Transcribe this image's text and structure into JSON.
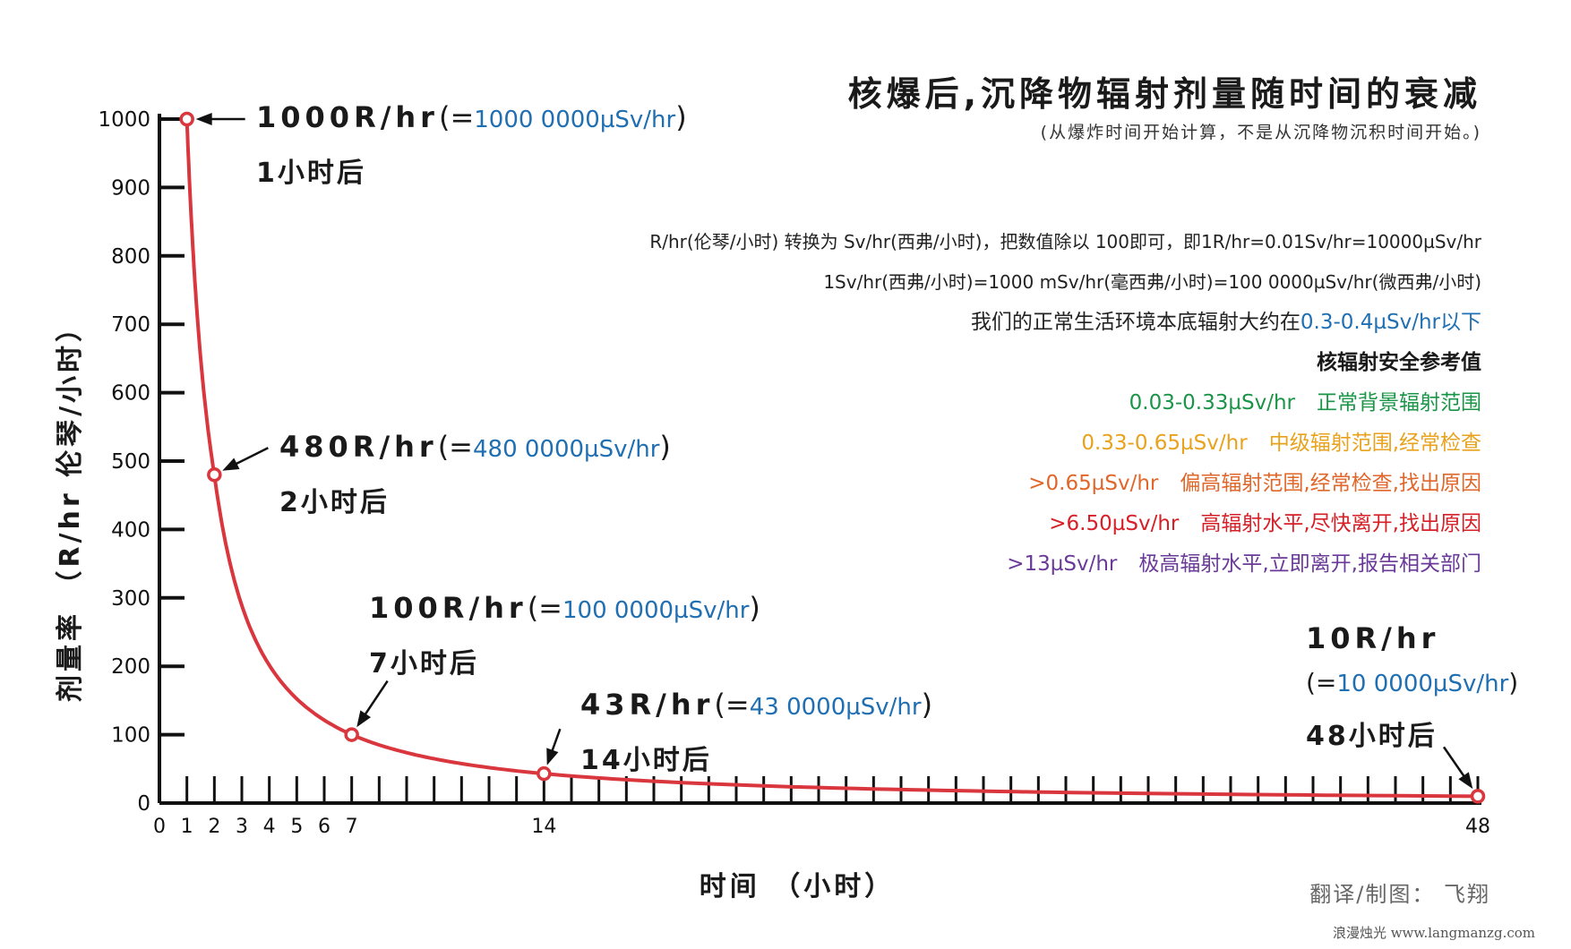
{
  "chart_data": {
    "type": "line",
    "title": "核爆后,沉降物辐射剂量随时间的衰减",
    "subtitle": "(从爆炸时间开始计算，不是从沉降物沉积时间开始。)",
    "xlabel": "时间 （小时）",
    "ylabel": "剂量率 （R/hr 伦琴/小时）",
    "xlim": [
      0,
      48
    ],
    "ylim": [
      0,
      1000
    ],
    "x_tick_labels": [
      "0",
      "1",
      "2",
      "3",
      "4",
      "5",
      "6",
      "7",
      "14",
      "48"
    ],
    "y_ticks": [
      "0",
      "100",
      "200",
      "300",
      "400",
      "500",
      "600",
      "700",
      "800",
      "900",
      "1000"
    ],
    "line_color": "#d9363e",
    "points": [
      {
        "x": 1,
        "y": 1000
      },
      {
        "x": 2,
        "y": 480
      },
      {
        "x": 7,
        "y": 100
      },
      {
        "x": 14,
        "y": 43
      },
      {
        "x": 48,
        "y": 10
      }
    ],
    "annotations": [
      {
        "rate": "1000R/hr",
        "open": "(=",
        "value": "1000 0000µSv/hr",
        "close": ")",
        "time": "1小时后"
      },
      {
        "rate": "480R/hr",
        "open": "(=",
        "value": "480 0000µSv/hr",
        "close": ")",
        "time": "2小时后"
      },
      {
        "rate": "100R/hr",
        "open": "(=",
        "value": "100 0000µSv/hr",
        "close": ")",
        "time": "7小时后"
      },
      {
        "rate": "43R/hr",
        "open": "(=",
        "value": "43 0000µSv/hr",
        "close": ")",
        "time": "14小时后"
      },
      {
        "rate": "10R/hr",
        "open": "(=",
        "value": "10 0000µSv/hr",
        "close": ")",
        "time": "48小时后"
      }
    ]
  },
  "info": {
    "conversion_1": "R/hr(伦琴/小时) 转换为 Sv/hr(西弗/小时)，把数值除以 100即可，即1R/hr=0.01Sv/hr=10000µSv/hr",
    "conversion_2": "1Sv/hr(西弗/小时)=1000 mSv/hr(毫西弗/小时)=100 0000µSv/hr(微西弗/小时)",
    "background_prefix": "我们的正常生活环境本底辐射大约在",
    "background_value": "0.3-0.4µSv/hr以下",
    "safety_title": "核辐射安全参考值",
    "safety_levels": [
      {
        "range": "0.03-0.33µSv/hr",
        "desc": "正常背景辐射范围",
        "color": "#1a9447"
      },
      {
        "range": "0.33-0.65µSv/hr",
        "desc": "中级辐射范围,经常检查",
        "color": "#e8a21c"
      },
      {
        "range": ">0.65µSv/hr",
        "desc": "偏高辐射范围,经常检查,找出原因",
        "color": "#e0662a"
      },
      {
        "range": ">6.50µSv/hr",
        "desc": "高辐射水平,尽快离开,找出原因",
        "color": "#d61f26"
      },
      {
        "range": ">13µSv/hr",
        "desc": "极高辐射水平,立即离开,报告相关部门",
        "color": "#6a3a98"
      }
    ]
  },
  "credit": "翻译/制图： 飞翔",
  "watermark": "浪漫烛光 www.langmanzg.com"
}
